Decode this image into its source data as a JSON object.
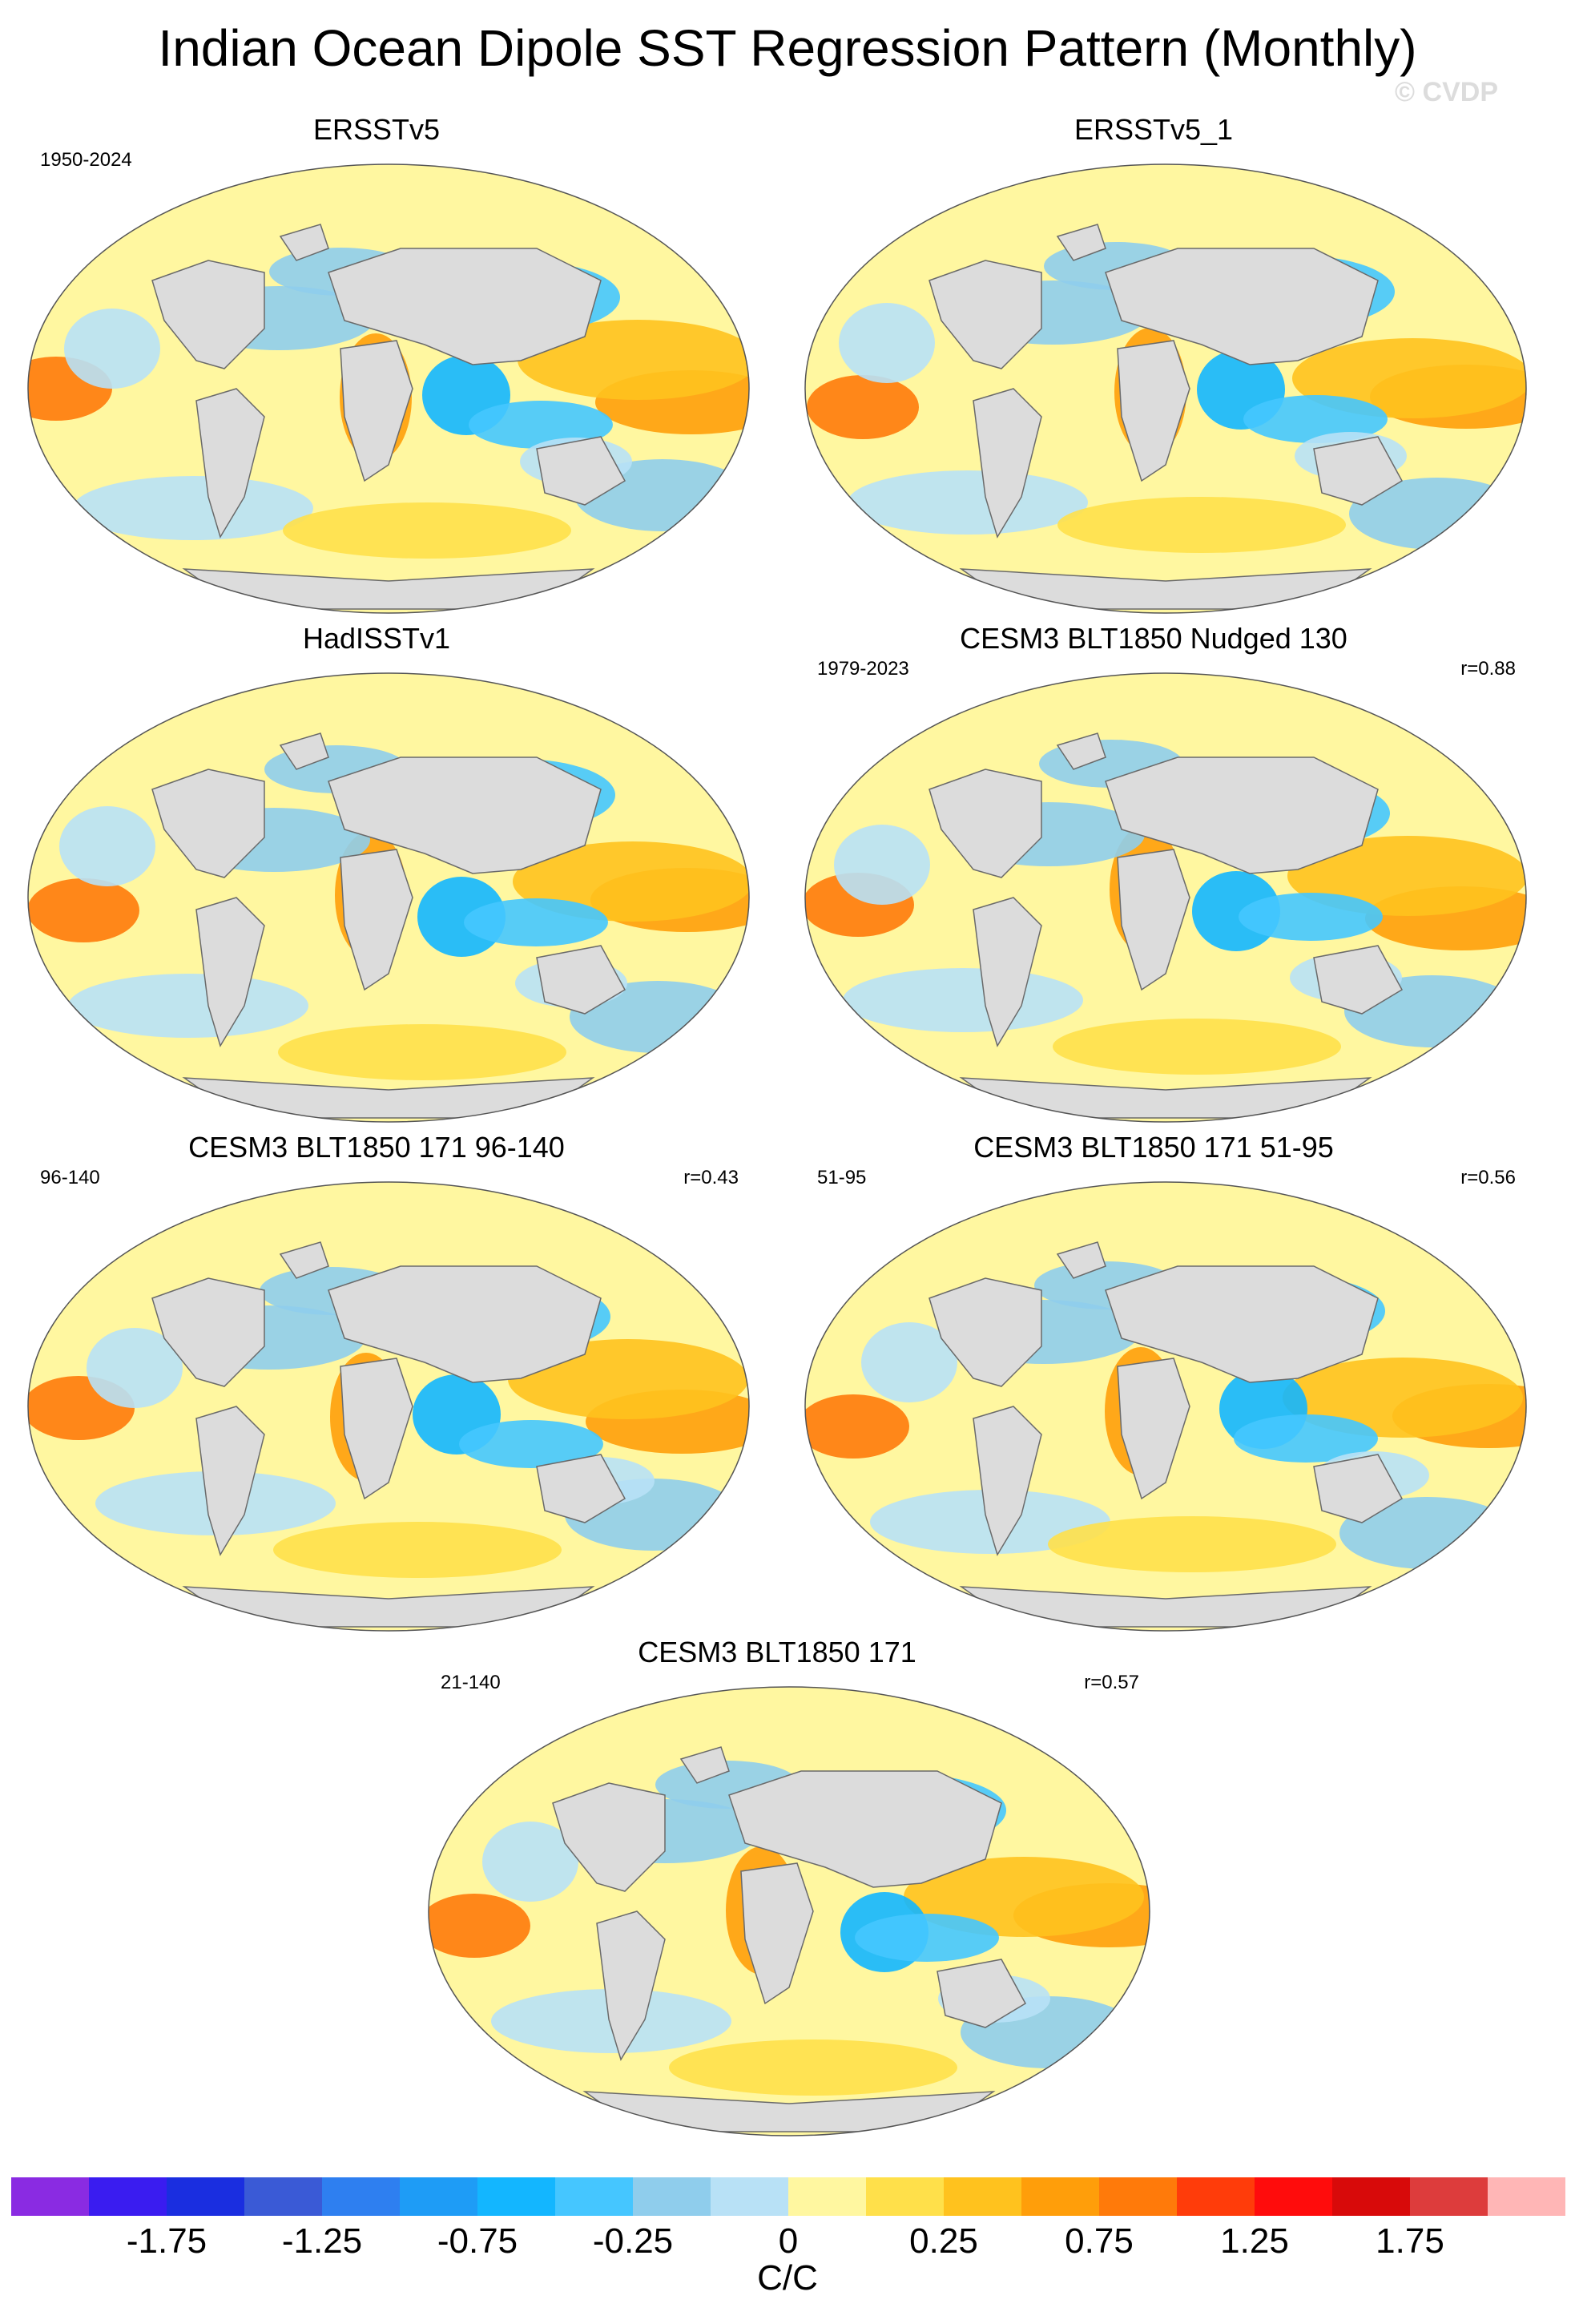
{
  "title": "Indian Ocean Dipole SST Regression Pattern (Monthly)",
  "watermark": "© CVDP",
  "panels": [
    {
      "title": "ERSSTv5",
      "period": "1950-2024",
      "corr": ""
    },
    {
      "title": "ERSSTv5_1",
      "period": "",
      "corr": ""
    },
    {
      "title": "HadISSTv1",
      "period": "",
      "corr": ""
    },
    {
      "title": "CESM3 BLT1850 Nudged 130",
      "period": "1979-2023",
      "corr": "r=0.88"
    },
    {
      "title": "CESM3 BLT1850 171 96-140",
      "period": "96-140",
      "corr": "r=0.43"
    },
    {
      "title": "CESM3 BLT1850 171 51-95",
      "period": "51-95",
      "corr": "r=0.56"
    },
    {
      "title": "CESM3 BLT1850 171",
      "period": "21-140",
      "corr": "r=0.57"
    }
  ],
  "colorbar": {
    "colors": [
      "#8a2be2",
      "#3a1cf0",
      "#1a2ee0",
      "#3a5ad6",
      "#2e7ff0",
      "#1e9cf6",
      "#13b6ff",
      "#45c6ff",
      "#8fcdec",
      "#b8e1f6",
      "#fff7a0",
      "#ffe04a",
      "#ffc21e",
      "#ff9e0a",
      "#ff7a0a",
      "#ff3c0a",
      "#ff0c0c",
      "#d80a0a",
      "#dd3c3c",
      "#ffb6b6"
    ],
    "labels": [
      "-1.75",
      "-1.25",
      "-0.75",
      "-0.25",
      "0",
      "0.25",
      "0.75",
      "1.25",
      "1.75"
    ],
    "unit": "C/C"
  },
  "colors": {
    "land": "#dcdcdc",
    "ocean_neutral": "#fff7a0"
  }
}
